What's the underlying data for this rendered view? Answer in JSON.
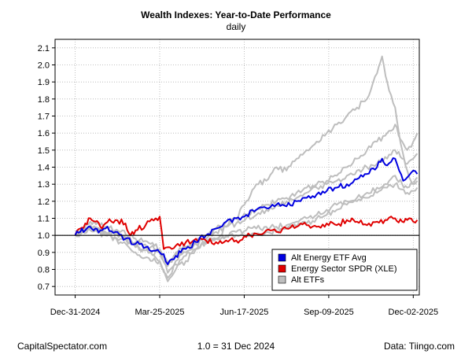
{
  "chart_data": {
    "type": "line",
    "title": "Wealth Indexes: Year-to-Date Performance",
    "subtitle": "daily",
    "xlabel": "",
    "ylabel": "",
    "ylim": [
      0.65,
      2.15
    ],
    "y_ticks": [
      "0.7",
      "0.8",
      "0.9",
      "1.0",
      "1.1",
      "1.2",
      "1.3",
      "1.4",
      "1.5",
      "1.6",
      "1.7",
      "1.8",
      "1.9",
      "2.0",
      "2.1"
    ],
    "x_ticks": [
      {
        "t": 0,
        "label": "Dec-31-2024"
      },
      {
        "t": 84,
        "label": "Mar-25-2025"
      },
      {
        "t": 168,
        "label": "Jun-17-2025"
      },
      {
        "t": 252,
        "label": "Sep-09-2025"
      },
      {
        "t": 336,
        "label": "Dec-02-2025"
      }
    ],
    "x_range": [
      -20,
      342
    ],
    "reference_line": 1.0,
    "grid": true,
    "legend_position": "bottom-right",
    "series": [
      {
        "name": "Alt ETF 1",
        "role": "alt",
        "color": "#bebebe",
        "points": [
          [
            0,
            1.0
          ],
          [
            15,
            1.06
          ],
          [
            30,
            1.02
          ],
          [
            45,
            1.0
          ],
          [
            60,
            0.93
          ],
          [
            75,
            0.9
          ],
          [
            84,
            0.85
          ],
          [
            92,
            0.73
          ],
          [
            100,
            0.8
          ],
          [
            110,
            0.85
          ],
          [
            120,
            0.92
          ],
          [
            130,
            0.95
          ],
          [
            140,
            0.98
          ],
          [
            150,
            1.05
          ],
          [
            160,
            1.1
          ],
          [
            170,
            1.2
          ],
          [
            180,
            1.3
          ],
          [
            190,
            1.32
          ],
          [
            200,
            1.4
          ],
          [
            210,
            1.38
          ],
          [
            220,
            1.45
          ],
          [
            230,
            1.5
          ],
          [
            240,
            1.55
          ],
          [
            250,
            1.6
          ],
          [
            260,
            1.65
          ],
          [
            270,
            1.7
          ],
          [
            280,
            1.75
          ],
          [
            290,
            1.8
          ],
          [
            300,
            1.95
          ],
          [
            305,
            2.05
          ],
          [
            312,
            1.85
          ],
          [
            318,
            1.75
          ],
          [
            325,
            1.5
          ],
          [
            330,
            1.38
          ],
          [
            336,
            1.3
          ],
          [
            340,
            1.34
          ]
        ]
      },
      {
        "name": "Alt ETF 2",
        "role": "alt",
        "color": "#bebebe",
        "points": [
          [
            0,
            1.0
          ],
          [
            15,
            1.04
          ],
          [
            30,
            1.02
          ],
          [
            45,
            1.0
          ],
          [
            60,
            0.96
          ],
          [
            75,
            0.93
          ],
          [
            84,
            0.9
          ],
          [
            92,
            0.82
          ],
          [
            100,
            0.88
          ],
          [
            110,
            0.93
          ],
          [
            120,
            0.97
          ],
          [
            130,
            1.0
          ],
          [
            140,
            1.04
          ],
          [
            150,
            1.08
          ],
          [
            160,
            1.1
          ],
          [
            170,
            1.12
          ],
          [
            180,
            1.15
          ],
          [
            190,
            1.18
          ],
          [
            200,
            1.2
          ],
          [
            210,
            1.22
          ],
          [
            220,
            1.25
          ],
          [
            230,
            1.28
          ],
          [
            240,
            1.3
          ],
          [
            250,
            1.32
          ],
          [
            260,
            1.35
          ],
          [
            270,
            1.4
          ],
          [
            280,
            1.45
          ],
          [
            290,
            1.5
          ],
          [
            300,
            1.55
          ],
          [
            310,
            1.6
          ],
          [
            318,
            1.65
          ],
          [
            325,
            1.55
          ],
          [
            330,
            1.5
          ],
          [
            336,
            1.55
          ],
          [
            340,
            1.6
          ]
        ]
      },
      {
        "name": "Alt ETF 3",
        "role": "alt",
        "color": "#bebebe",
        "points": [
          [
            0,
            1.0
          ],
          [
            15,
            1.05
          ],
          [
            30,
            1.02
          ],
          [
            45,
            0.98
          ],
          [
            60,
            0.94
          ],
          [
            75,
            0.9
          ],
          [
            84,
            0.9
          ],
          [
            92,
            0.78
          ],
          [
            100,
            0.85
          ],
          [
            110,
            0.9
          ],
          [
            120,
            0.95
          ],
          [
            130,
            0.98
          ],
          [
            140,
            1.02
          ],
          [
            150,
            1.05
          ],
          [
            160,
            1.07
          ],
          [
            170,
            1.1
          ],
          [
            180,
            1.12
          ],
          [
            190,
            1.15
          ],
          [
            200,
            1.18
          ],
          [
            210,
            1.2
          ],
          [
            220,
            1.22
          ],
          [
            230,
            1.25
          ],
          [
            240,
            1.28
          ],
          [
            250,
            1.3
          ],
          [
            260,
            1.32
          ],
          [
            270,
            1.35
          ],
          [
            280,
            1.38
          ],
          [
            290,
            1.4
          ],
          [
            300,
            1.42
          ],
          [
            310,
            1.45
          ],
          [
            318,
            1.5
          ],
          [
            325,
            1.45
          ],
          [
            330,
            1.42
          ],
          [
            336,
            1.45
          ],
          [
            340,
            1.48
          ]
        ]
      },
      {
        "name": "Alt ETF 4",
        "role": "alt",
        "color": "#bebebe",
        "points": [
          [
            0,
            1.0
          ],
          [
            15,
            1.03
          ],
          [
            30,
            1.0
          ],
          [
            45,
            0.96
          ],
          [
            60,
            0.9
          ],
          [
            75,
            0.85
          ],
          [
            84,
            0.85
          ],
          [
            92,
            0.75
          ],
          [
            100,
            0.83
          ],
          [
            110,
            0.88
          ],
          [
            120,
            0.92
          ],
          [
            130,
            0.96
          ],
          [
            140,
            0.98
          ],
          [
            150,
            1.0
          ],
          [
            160,
            1.02
          ],
          [
            170,
            1.03
          ],
          [
            180,
            1.04
          ],
          [
            190,
            1.05
          ],
          [
            200,
            1.05
          ],
          [
            210,
            1.06
          ],
          [
            220,
            1.08
          ],
          [
            230,
            1.1
          ],
          [
            240,
            1.12
          ],
          [
            250,
            1.15
          ],
          [
            260,
            1.18
          ],
          [
            270,
            1.2
          ],
          [
            280,
            1.22
          ],
          [
            290,
            1.25
          ],
          [
            300,
            1.28
          ],
          [
            310,
            1.3
          ],
          [
            318,
            1.35
          ],
          [
            325,
            1.3
          ],
          [
            330,
            1.28
          ],
          [
            336,
            1.3
          ],
          [
            340,
            1.32
          ]
        ]
      },
      {
        "name": "Alt ETF 5",
        "role": "alt",
        "color": "#bebebe",
        "points": [
          [
            0,
            1.0
          ],
          [
            15,
            1.08
          ],
          [
            30,
            1.05
          ],
          [
            45,
            1.02
          ],
          [
            60,
            0.98
          ],
          [
            75,
            0.95
          ],
          [
            84,
            0.92
          ],
          [
            92,
            0.84
          ],
          [
            100,
            0.9
          ],
          [
            110,
            0.93
          ],
          [
            120,
            0.95
          ],
          [
            130,
            0.97
          ],
          [
            140,
            0.98
          ],
          [
            150,
            0.99
          ],
          [
            160,
            1.0
          ],
          [
            170,
            1.0
          ],
          [
            180,
            1.01
          ],
          [
            190,
            1.02
          ],
          [
            200,
            1.03
          ],
          [
            210,
            1.04
          ],
          [
            220,
            1.05
          ],
          [
            230,
            1.07
          ],
          [
            240,
            1.1
          ],
          [
            250,
            1.12
          ],
          [
            260,
            1.15
          ],
          [
            270,
            1.18
          ],
          [
            280,
            1.2
          ],
          [
            290,
            1.22
          ],
          [
            300,
            1.25
          ],
          [
            310,
            1.28
          ],
          [
            318,
            1.3
          ],
          [
            325,
            1.27
          ],
          [
            330,
            1.25
          ],
          [
            336,
            1.26
          ],
          [
            340,
            1.28
          ]
        ]
      },
      {
        "name": "Energy Sector SPDR (XLE)",
        "role": "xle",
        "color": "#e00000",
        "points": [
          [
            0,
            1.0
          ],
          [
            5,
            1.04
          ],
          [
            10,
            1.07
          ],
          [
            15,
            1.1
          ],
          [
            20,
            1.08
          ],
          [
            25,
            1.05
          ],
          [
            30,
            1.07
          ],
          [
            40,
            1.09
          ],
          [
            50,
            1.07
          ],
          [
            55,
            1.0
          ],
          [
            60,
            1.03
          ],
          [
            70,
            1.06
          ],
          [
            80,
            1.1
          ],
          [
            84,
            1.11
          ],
          [
            88,
            0.92
          ],
          [
            92,
            0.93
          ],
          [
            96,
            0.92
          ],
          [
            100,
            0.94
          ],
          [
            110,
            0.96
          ],
          [
            120,
            0.98
          ],
          [
            130,
            0.97
          ],
          [
            140,
            0.96
          ],
          [
            150,
            0.97
          ],
          [
            160,
            0.97
          ],
          [
            170,
            0.99
          ],
          [
            180,
            1.01
          ],
          [
            190,
            1.03
          ],
          [
            200,
            1.02
          ],
          [
            210,
            1.04
          ],
          [
            220,
            1.05
          ],
          [
            230,
            1.06
          ],
          [
            240,
            1.05
          ],
          [
            250,
            1.07
          ],
          [
            260,
            1.06
          ],
          [
            270,
            1.09
          ],
          [
            275,
            1.1
          ],
          [
            280,
            1.08
          ],
          [
            290,
            1.06
          ],
          [
            300,
            1.08
          ],
          [
            310,
            1.09
          ],
          [
            318,
            1.1
          ],
          [
            325,
            1.08
          ],
          [
            330,
            1.09
          ],
          [
            336,
            1.08
          ],
          [
            340,
            1.09
          ]
        ]
      },
      {
        "name": "Alt Energy ETF Avg",
        "role": "avg",
        "color": "#0000e0",
        "points": [
          [
            0,
            1.0
          ],
          [
            5,
            1.02
          ],
          [
            10,
            1.03
          ],
          [
            15,
            1.05
          ],
          [
            20,
            1.04
          ],
          [
            25,
            1.03
          ],
          [
            30,
            1.04
          ],
          [
            40,
            1.02
          ],
          [
            50,
            0.98
          ],
          [
            60,
            0.95
          ],
          [
            70,
            0.93
          ],
          [
            80,
            0.91
          ],
          [
            84,
            0.9
          ],
          [
            88,
            0.89
          ],
          [
            92,
            0.83
          ],
          [
            96,
            0.86
          ],
          [
            100,
            0.88
          ],
          [
            105,
            0.9
          ],
          [
            110,
            0.92
          ],
          [
            120,
            0.96
          ],
          [
            130,
            1.0
          ],
          [
            140,
            1.04
          ],
          [
            150,
            1.08
          ],
          [
            160,
            1.1
          ],
          [
            170,
            1.12
          ],
          [
            180,
            1.15
          ],
          [
            190,
            1.16
          ],
          [
            200,
            1.18
          ],
          [
            210,
            1.17
          ],
          [
            220,
            1.2
          ],
          [
            230,
            1.22
          ],
          [
            240,
            1.24
          ],
          [
            250,
            1.26
          ],
          [
            260,
            1.28
          ],
          [
            270,
            1.3
          ],
          [
            280,
            1.33
          ],
          [
            290,
            1.36
          ],
          [
            300,
            1.4
          ],
          [
            305,
            1.45
          ],
          [
            310,
            1.41
          ],
          [
            318,
            1.45
          ],
          [
            322,
            1.38
          ],
          [
            326,
            1.32
          ],
          [
            330,
            1.34
          ],
          [
            336,
            1.38
          ],
          [
            340,
            1.36
          ]
        ]
      }
    ],
    "legend": [
      {
        "label": "Alt Energy ETF Avg",
        "color": "#0000e0"
      },
      {
        "label": "Energy Sector SPDR (XLE)",
        "color": "#e00000"
      },
      {
        "label": "Alt ETFs",
        "color": "#bebebe"
      }
    ]
  },
  "footer": {
    "left": "CapitalSpectator.com",
    "center": "1.0 = 31 Dec 2024",
    "right": "Data: Tiingo.com"
  }
}
